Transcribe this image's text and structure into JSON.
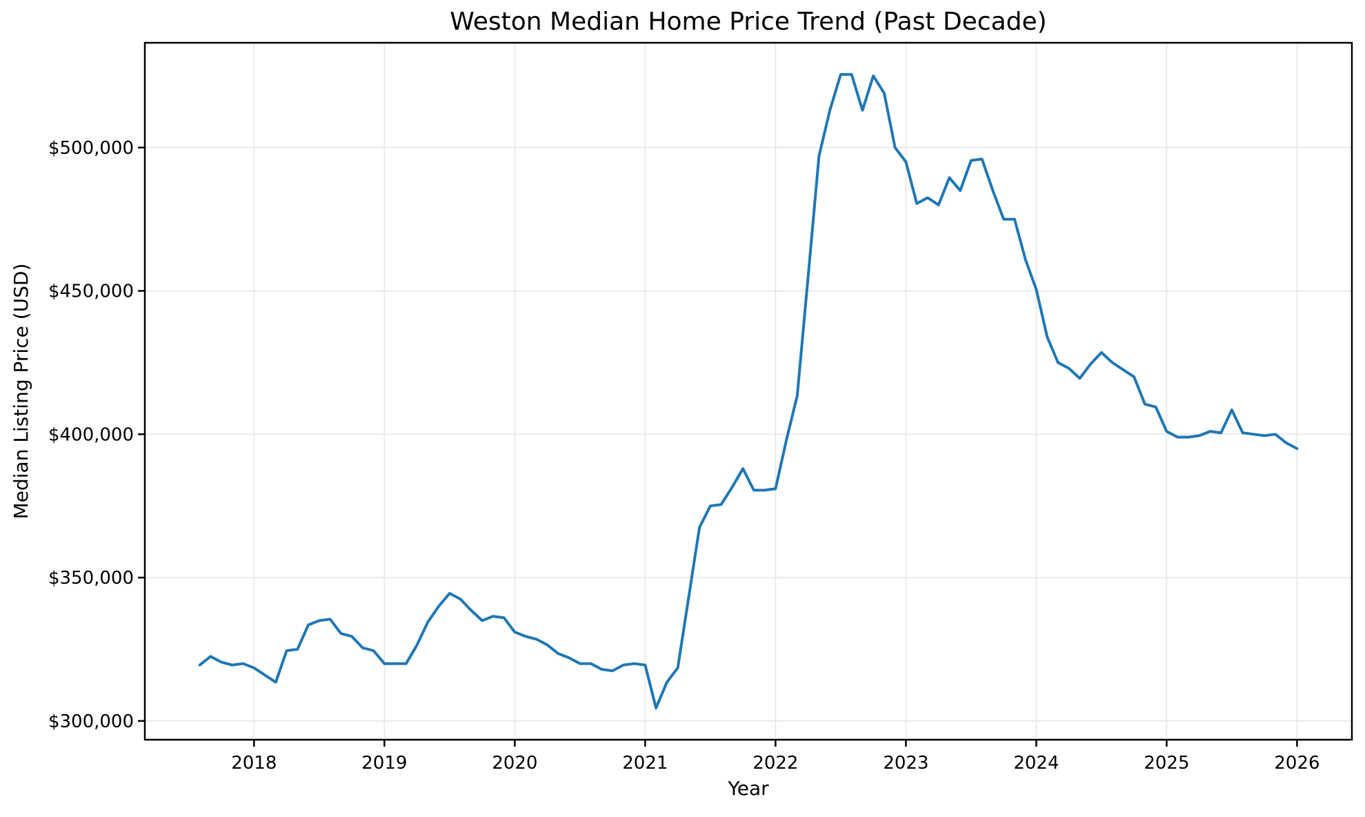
{
  "figure": {
    "title": "Weston Median Home Price Trend (Past Decade)",
    "xlabel": "Year",
    "ylabel": "Median Listing Price (USD)"
  },
  "chart_data": {
    "type": "line",
    "title": "Weston Median Home Price Trend (Past Decade)",
    "xlabel": "Year",
    "ylabel": "Median Listing Price (USD)",
    "legend": "none",
    "grid": true,
    "grid_color": "#e6e6e6",
    "background": "#ffffff",
    "line_color": "#1f77b4",
    "line_width": 4,
    "xlim": [
      2017.1625,
      2026.4208
    ],
    "ylim": [
      293450,
      536550
    ],
    "x_ticks": [
      {
        "value": 2018,
        "label": "2018"
      },
      {
        "value": 2019,
        "label": "2019"
      },
      {
        "value": 2020,
        "label": "2020"
      },
      {
        "value": 2021,
        "label": "2021"
      },
      {
        "value": 2022,
        "label": "2022"
      },
      {
        "value": 2023,
        "label": "2023"
      },
      {
        "value": 2024,
        "label": "2024"
      },
      {
        "value": 2025,
        "label": "2025"
      },
      {
        "value": 2026,
        "label": "2026"
      }
    ],
    "y_ticks": [
      {
        "value": 300000,
        "label": "$300,000"
      },
      {
        "value": 350000,
        "label": "$350,000"
      },
      {
        "value": 400000,
        "label": "$400,000"
      },
      {
        "value": 450000,
        "label": "$450,000"
      },
      {
        "value": 500000,
        "label": "$500,000"
      }
    ],
    "series": [
      {
        "name": "Median Listing Price",
        "points": [
          [
            "2017-08",
            319500
          ],
          [
            "2017-09",
            322500
          ],
          [
            "2017-10",
            320500
          ],
          [
            "2017-11",
            319500
          ],
          [
            "2017-12",
            320000
          ],
          [
            "2018-01",
            318500
          ],
          [
            "2018-02",
            316000
          ],
          [
            "2018-03",
            313500
          ],
          [
            "2018-04",
            324500
          ],
          [
            "2018-05",
            325000
          ],
          [
            "2018-06",
            333500
          ],
          [
            "2018-07",
            335000
          ],
          [
            "2018-08",
            335500
          ],
          [
            "2018-09",
            330500
          ],
          [
            "2018-10",
            329500
          ],
          [
            "2018-11",
            325500
          ],
          [
            "2018-12",
            324500
          ],
          [
            "2019-01",
            320000
          ],
          [
            "2019-02",
            320000
          ],
          [
            "2019-03",
            320000
          ],
          [
            "2019-04",
            326500
          ],
          [
            "2019-05",
            334500
          ],
          [
            "2019-06",
            340000
          ],
          [
            "2019-07",
            344500
          ],
          [
            "2019-08",
            342500
          ],
          [
            "2019-09",
            338500
          ],
          [
            "2019-10",
            335000
          ],
          [
            "2019-11",
            336500
          ],
          [
            "2019-12",
            336000
          ],
          [
            "2020-01",
            331000
          ],
          [
            "2020-02",
            329500
          ],
          [
            "2020-03",
            328500
          ],
          [
            "2020-04",
            326500
          ],
          [
            "2020-05",
            323500
          ],
          [
            "2020-06",
            322000
          ],
          [
            "2020-07",
            320000
          ],
          [
            "2020-08",
            320000
          ],
          [
            "2020-09",
            318000
          ],
          [
            "2020-10",
            317500
          ],
          [
            "2020-11",
            319500
          ],
          [
            "2020-12",
            320000
          ],
          [
            "2021-01",
            319500
          ],
          [
            "2021-02",
            304500
          ],
          [
            "2021-03",
            313500
          ],
          [
            "2021-04",
            318500
          ],
          [
            "2021-05",
            343000
          ],
          [
            "2021-06",
            367500
          ],
          [
            "2021-07",
            375000
          ],
          [
            "2021-08",
            375500
          ],
          [
            "2021-09",
            381500
          ],
          [
            "2021-10",
            388000
          ],
          [
            "2021-11",
            380500
          ],
          [
            "2021-12",
            380500
          ],
          [
            "2022-01",
            381000
          ],
          [
            "2022-02",
            398000
          ],
          [
            "2022-03",
            413500
          ],
          [
            "2022-04",
            455000
          ],
          [
            "2022-05",
            497000
          ],
          [
            "2022-06",
            513000
          ],
          [
            "2022-07",
            525500
          ],
          [
            "2022-08",
            525500
          ],
          [
            "2022-09",
            513000
          ],
          [
            "2022-10",
            525000
          ],
          [
            "2022-11",
            519000
          ],
          [
            "2022-12",
            500000
          ],
          [
            "2023-01",
            495000
          ],
          [
            "2023-02",
            480500
          ],
          [
            "2023-03",
            482500
          ],
          [
            "2023-04",
            480000
          ],
          [
            "2023-05",
            489500
          ],
          [
            "2023-06",
            485000
          ],
          [
            "2023-07",
            495500
          ],
          [
            "2023-08",
            496000
          ],
          [
            "2023-09",
            485000
          ],
          [
            "2023-10",
            475000
          ],
          [
            "2023-11",
            475000
          ],
          [
            "2023-12",
            461000
          ],
          [
            "2024-01",
            450500
          ],
          [
            "2024-02",
            434000
          ],
          [
            "2024-03",
            425000
          ],
          [
            "2024-04",
            423000
          ],
          [
            "2024-05",
            419500
          ],
          [
            "2024-06",
            424500
          ],
          [
            "2024-07",
            428500
          ],
          [
            "2024-08",
            425000
          ],
          [
            "2024-09",
            422500
          ],
          [
            "2024-10",
            420000
          ],
          [
            "2024-11",
            410500
          ],
          [
            "2024-12",
            409500
          ],
          [
            "2025-01",
            401000
          ],
          [
            "2025-02",
            399000
          ],
          [
            "2025-03",
            399000
          ],
          [
            "2025-04",
            399500
          ],
          [
            "2025-05",
            401000
          ],
          [
            "2025-06",
            400500
          ],
          [
            "2025-07",
            408500
          ],
          [
            "2025-08",
            400500
          ],
          [
            "2025-09",
            400000
          ],
          [
            "2025-10",
            399500
          ],
          [
            "2025-11",
            400000
          ],
          [
            "2025-12",
            397000
          ],
          [
            "2026-01",
            395000
          ]
        ]
      }
    ]
  }
}
